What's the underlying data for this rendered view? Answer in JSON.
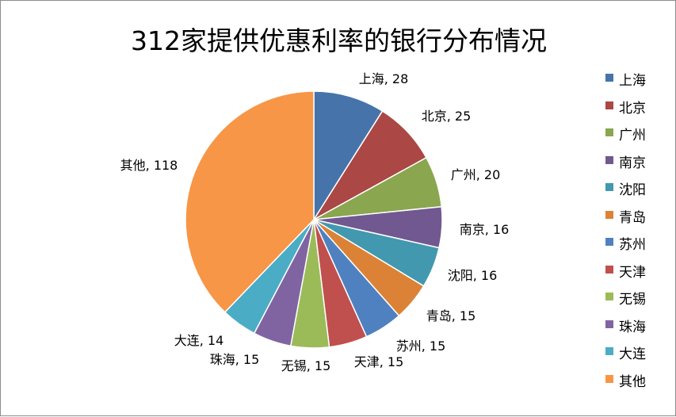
{
  "chart_data": {
    "type": "pie",
    "title": "312家提供优惠利率的银行分布情况",
    "legend_position": "right",
    "slices": [
      {
        "label": "上海",
        "value": 28,
        "color": "#4674aa",
        "data_label": "上海, 28"
      },
      {
        "label": "北京",
        "value": 25,
        "color": "#ab4744",
        "data_label": "北京, 25"
      },
      {
        "label": "广州",
        "value": 20,
        "color": "#8aa64f",
        "data_label": "广州, 20"
      },
      {
        "label": "南京",
        "value": 16,
        "color": "#725890",
        "data_label": "南京, 16"
      },
      {
        "label": "沈阳",
        "value": 16,
        "color": "#4298ae",
        "data_label": "沈阳, 16"
      },
      {
        "label": "青岛",
        "value": 15,
        "color": "#db8237",
        "data_label": "青岛, 15"
      },
      {
        "label": "苏州",
        "value": 15,
        "color": "#4f81c0",
        "data_label": "苏州, 15"
      },
      {
        "label": "天津",
        "value": 15,
        "color": "#c0504d",
        "data_label": "天津, 15"
      },
      {
        "label": "无锡",
        "value": 15,
        "color": "#9bbb59",
        "data_label": "无锡, 15"
      },
      {
        "label": "珠海",
        "value": 15,
        "color": "#8064a2",
        "data_label": "珠海, 15"
      },
      {
        "label": "大连",
        "value": 14,
        "color": "#4bacc6",
        "data_label": "大连, 14"
      },
      {
        "label": "其他",
        "value": 118,
        "color": "#f79646",
        "data_label": "其他, 118"
      }
    ]
  }
}
